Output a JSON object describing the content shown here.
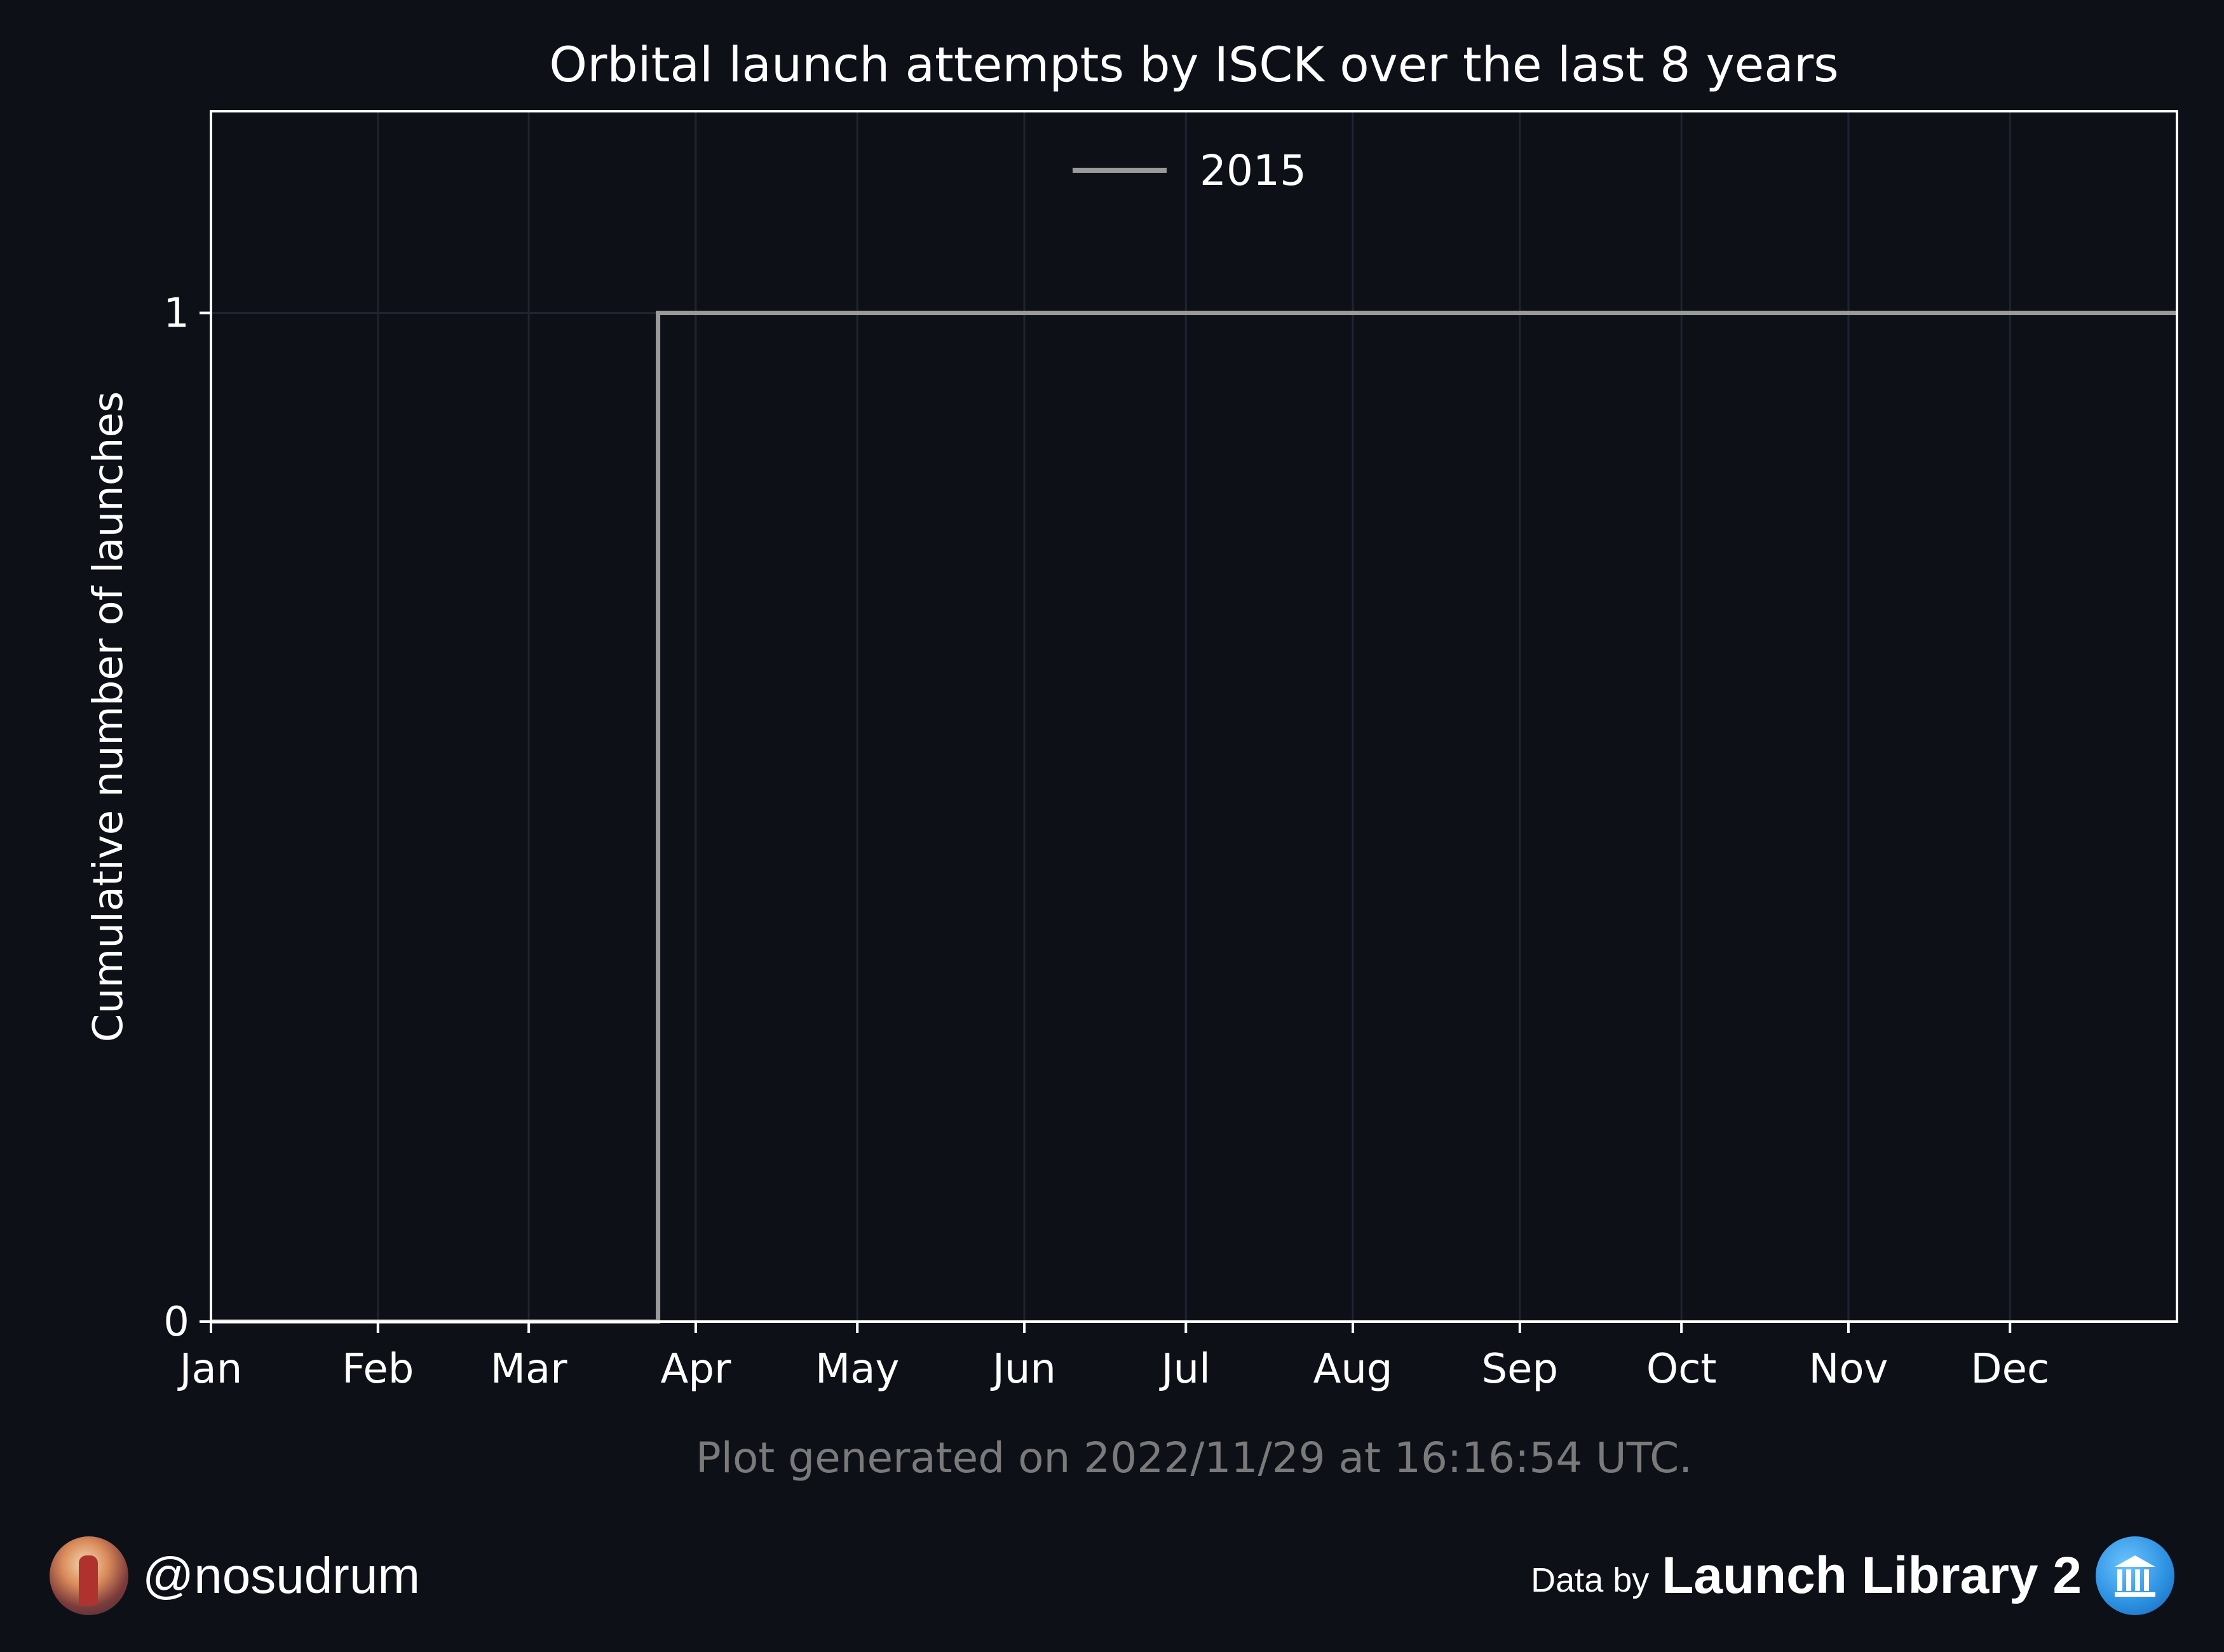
{
  "chart_data": {
    "type": "line",
    "step": true,
    "title": "Orbital launch attempts by ISCK over the last 8 years",
    "xlabel": "",
    "ylabel": "Cumulative number of launches",
    "x_tick_labels": [
      "Jan",
      "Feb",
      "Mar",
      "Apr",
      "May",
      "Jun",
      "Jul",
      "Aug",
      "Sep",
      "Oct",
      "Nov",
      "Dec"
    ],
    "x_tick_days": [
      0,
      31,
      59,
      90,
      120,
      151,
      181,
      212,
      243,
      273,
      304,
      334
    ],
    "x_range_days": [
      0,
      365
    ],
    "y_ticks": [
      0,
      1
    ],
    "ylim": [
      0,
      1.2
    ],
    "grid": true,
    "legend_position": "upper center",
    "series": [
      {
        "name": "2015",
        "color": "#9a9a9a",
        "points": [
          {
            "date": "Jan 1",
            "day": 0,
            "y": 0
          },
          {
            "date": "Mar 25",
            "day": 83,
            "y": 1
          },
          {
            "date": "Dec 31",
            "day": 365,
            "y": 1
          }
        ]
      }
    ]
  },
  "footnote": "Plot generated on 2022/11/29 at 16:16:54 UTC.",
  "footer": {
    "handle": "@nosudrum",
    "data_by": "Data by",
    "source": "Launch Library 2"
  },
  "colors": {
    "background": "#0d1017",
    "frame": "#ffffff",
    "grid": "#1f2430",
    "footnote": "#7a7a7a"
  }
}
